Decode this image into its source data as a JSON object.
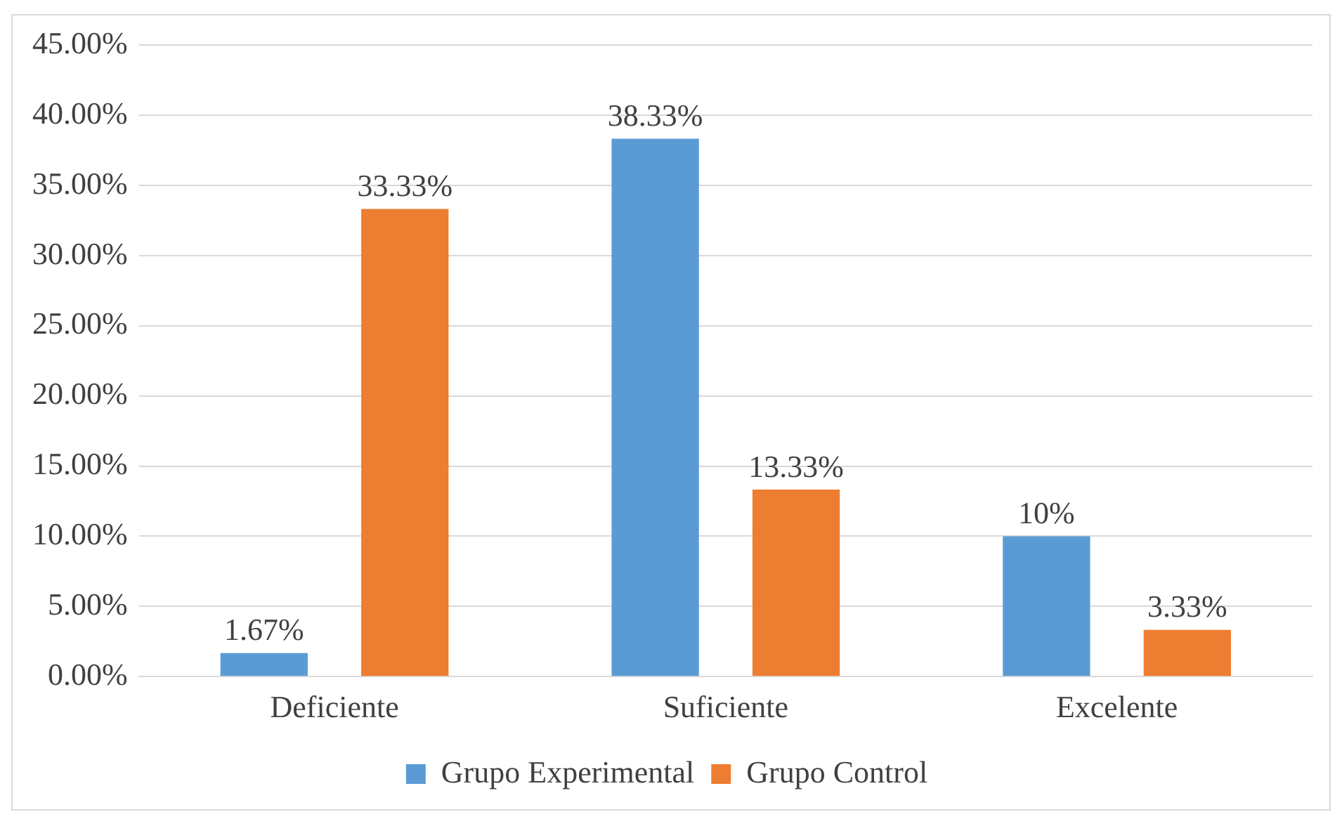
{
  "chart_data": {
    "type": "bar",
    "categories": [
      "Deficiente",
      "Suficiente",
      "Excelente"
    ],
    "series": [
      {
        "name": "Grupo Experimental",
        "color": "#5b9bd5",
        "values": [
          1.67,
          38.33,
          10
        ],
        "value_labels": [
          "1.67%",
          "38.33%",
          "10%"
        ]
      },
      {
        "name": "Grupo Control",
        "color": "#ed7d31",
        "values": [
          33.33,
          13.33,
          3.33
        ],
        "value_labels": [
          "33.33%",
          "13.33%",
          "3.33%"
        ]
      }
    ],
    "ylim": [
      0,
      45
    ],
    "yticks": [
      {
        "value": 0,
        "label": "0.00%"
      },
      {
        "value": 5,
        "label": "5.00%"
      },
      {
        "value": 10,
        "label": "10.00%"
      },
      {
        "value": 15,
        "label": "15.00%"
      },
      {
        "value": 20,
        "label": "20.00%"
      },
      {
        "value": 25,
        "label": "25.00%"
      },
      {
        "value": 30,
        "label": "30.00%"
      },
      {
        "value": 35,
        "label": "35.00%"
      },
      {
        "value": 40,
        "label": "40.00%"
      },
      {
        "value": 45,
        "label": "45.00%"
      }
    ],
    "grid": "y",
    "legend": "bottom"
  }
}
